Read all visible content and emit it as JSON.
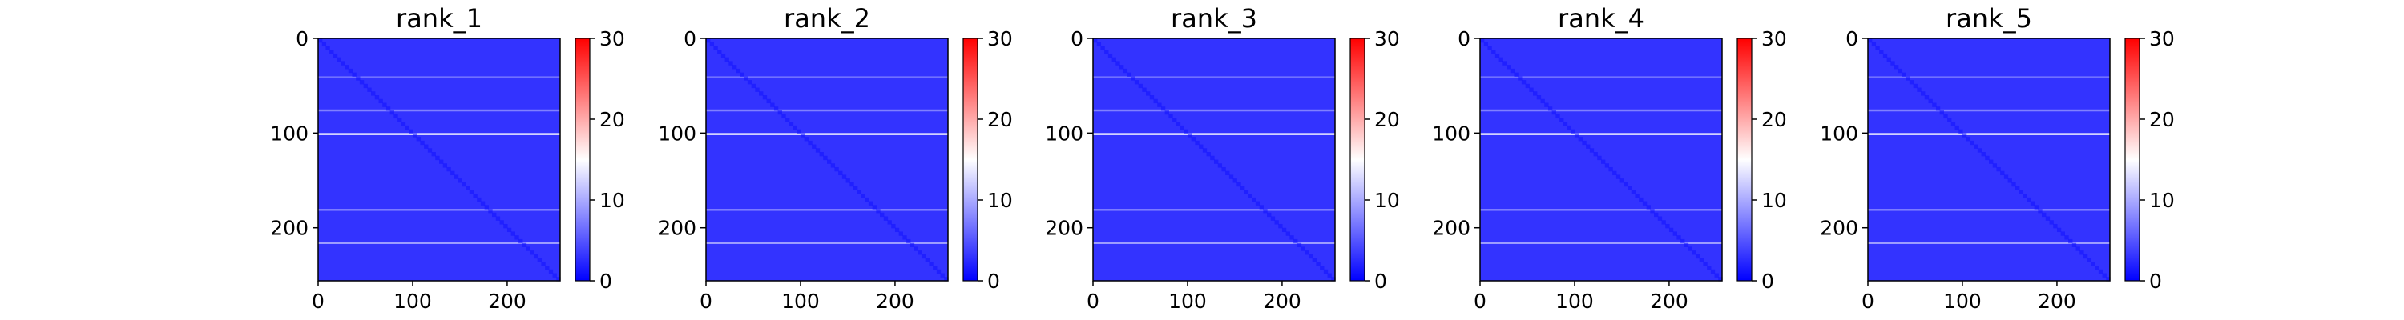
{
  "chart_data": {
    "type": "heatmap",
    "panels": [
      {
        "title": "rank_1"
      },
      {
        "title": "rank_2"
      },
      {
        "title": "rank_3"
      },
      {
        "title": "rank_4"
      },
      {
        "title": "rank_5"
      }
    ],
    "matrix_size": 256,
    "xlim": [
      0,
      256
    ],
    "ylim": [
      256,
      0
    ],
    "x_ticks": [
      "0",
      "100",
      "200"
    ],
    "y_ticks": [
      "0",
      "100",
      "200"
    ],
    "colorbar": {
      "cmap": "bwr",
      "range": [
        0,
        30
      ],
      "ticks": [
        "0",
        "10",
        "20",
        "30"
      ],
      "colors": [
        "#0000ff",
        "#ffffff",
        "#ff0000"
      ]
    },
    "background_value": 3,
    "diagonal_value": 1,
    "bright_rows": [
      {
        "row": 100,
        "value": 15
      },
      {
        "row": 215,
        "value": 10
      },
      {
        "row": 75,
        "value": 8
      },
      {
        "row": 180,
        "value": 8
      },
      {
        "row": 40,
        "value": 7
      }
    ],
    "grid": false
  }
}
